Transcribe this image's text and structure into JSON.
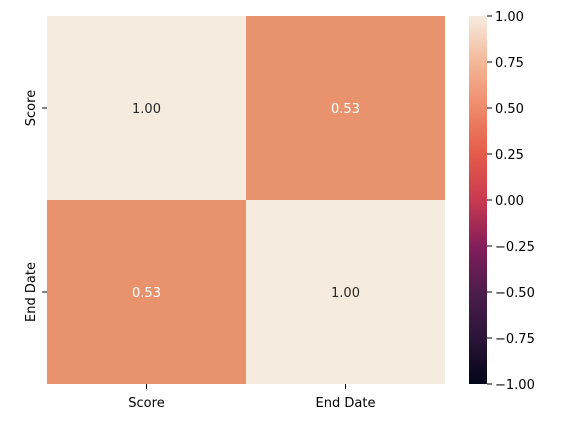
{
  "chart_data": {
    "type": "heatmap",
    "row_labels": [
      "Score",
      "End Date"
    ],
    "col_labels": [
      "Score",
      "End Date"
    ],
    "values": [
      [
        1.0,
        0.53
      ],
      [
        0.53,
        1.0
      ]
    ],
    "annotations": [
      [
        "1.00",
        "0.53"
      ],
      [
        "0.53",
        "1.00"
      ]
    ],
    "colorbar": {
      "range": [
        -1.0,
        1.0
      ],
      "ticks": [
        "1.00",
        "0.75",
        "0.50",
        "0.25",
        "0.00",
        "−0.25",
        "−0.50",
        "−0.75",
        "−1.00"
      ],
      "tick_values": [
        1.0,
        0.75,
        0.5,
        0.25,
        0.0,
        -0.25,
        -0.5,
        -0.75,
        -1.0
      ]
    },
    "colormap": "rocket",
    "colors": {
      "high": "#f6ebdf",
      "mid": "#e8936e",
      "zero": "#c83a50",
      "low": "#03051a"
    }
  }
}
